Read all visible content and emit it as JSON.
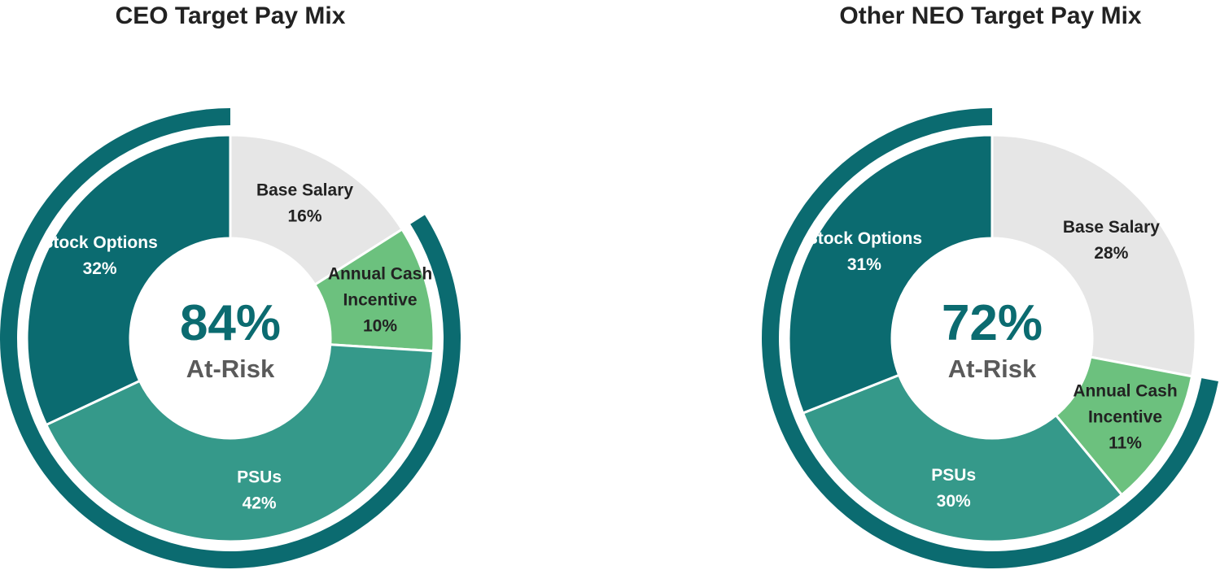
{
  "colors": {
    "dark_teal": "#0b6b70",
    "teal": "#35998a",
    "green": "#6cc17e",
    "light_gray": "#e6e6e6",
    "label_dark": "#222222",
    "center_gray": "#5a5a5a"
  },
  "chart_data": [
    {
      "type": "pie",
      "title": "CEO Target Pay Mix",
      "center_value": "84%",
      "center_label": "At-Risk",
      "slices": [
        {
          "label": "Base Salary",
          "value": 16,
          "display": "16%",
          "color": "#e6e6e6",
          "text_color": "#222222",
          "label_lines": [
            "Base Salary"
          ]
        },
        {
          "label": "Annual Cash Incentive",
          "value": 10,
          "display": "10%",
          "color": "#6cc17e",
          "text_color": "#222222",
          "label_lines": [
            "Annual Cash",
            "Incentive"
          ]
        },
        {
          "label": "PSUs",
          "value": 42,
          "display": "42%",
          "color": "#35998a",
          "text_color": "#ffffff",
          "label_lines": [
            "PSUs"
          ]
        },
        {
          "label": "Stock Options",
          "value": 32,
          "display": "32%",
          "color": "#0b6b70",
          "text_color": "#ffffff",
          "label_lines": [
            "Stock Options"
          ]
        }
      ],
      "at_risk_pct": 84
    },
    {
      "type": "pie",
      "title": "Other NEO Target Pay Mix",
      "center_value": "72%",
      "center_label": "At-Risk",
      "slices": [
        {
          "label": "Base Salary",
          "value": 28,
          "display": "28%",
          "color": "#e6e6e6",
          "text_color": "#222222",
          "label_lines": [
            "Base Salary"
          ]
        },
        {
          "label": "Annual Cash Incentive",
          "value": 11,
          "display": "11%",
          "color": "#6cc17e",
          "text_color": "#222222",
          "label_lines": [
            "Annual Cash",
            "Incentive"
          ]
        },
        {
          "label": "PSUs",
          "value": 30,
          "display": "30%",
          "color": "#35998a",
          "text_color": "#ffffff",
          "label_lines": [
            "PSUs"
          ]
        },
        {
          "label": "Stock Options",
          "value": 31,
          "display": "31%",
          "color": "#0b6b70",
          "text_color": "#ffffff",
          "label_lines": [
            "Stock Options"
          ]
        }
      ],
      "at_risk_pct": 72
    }
  ]
}
